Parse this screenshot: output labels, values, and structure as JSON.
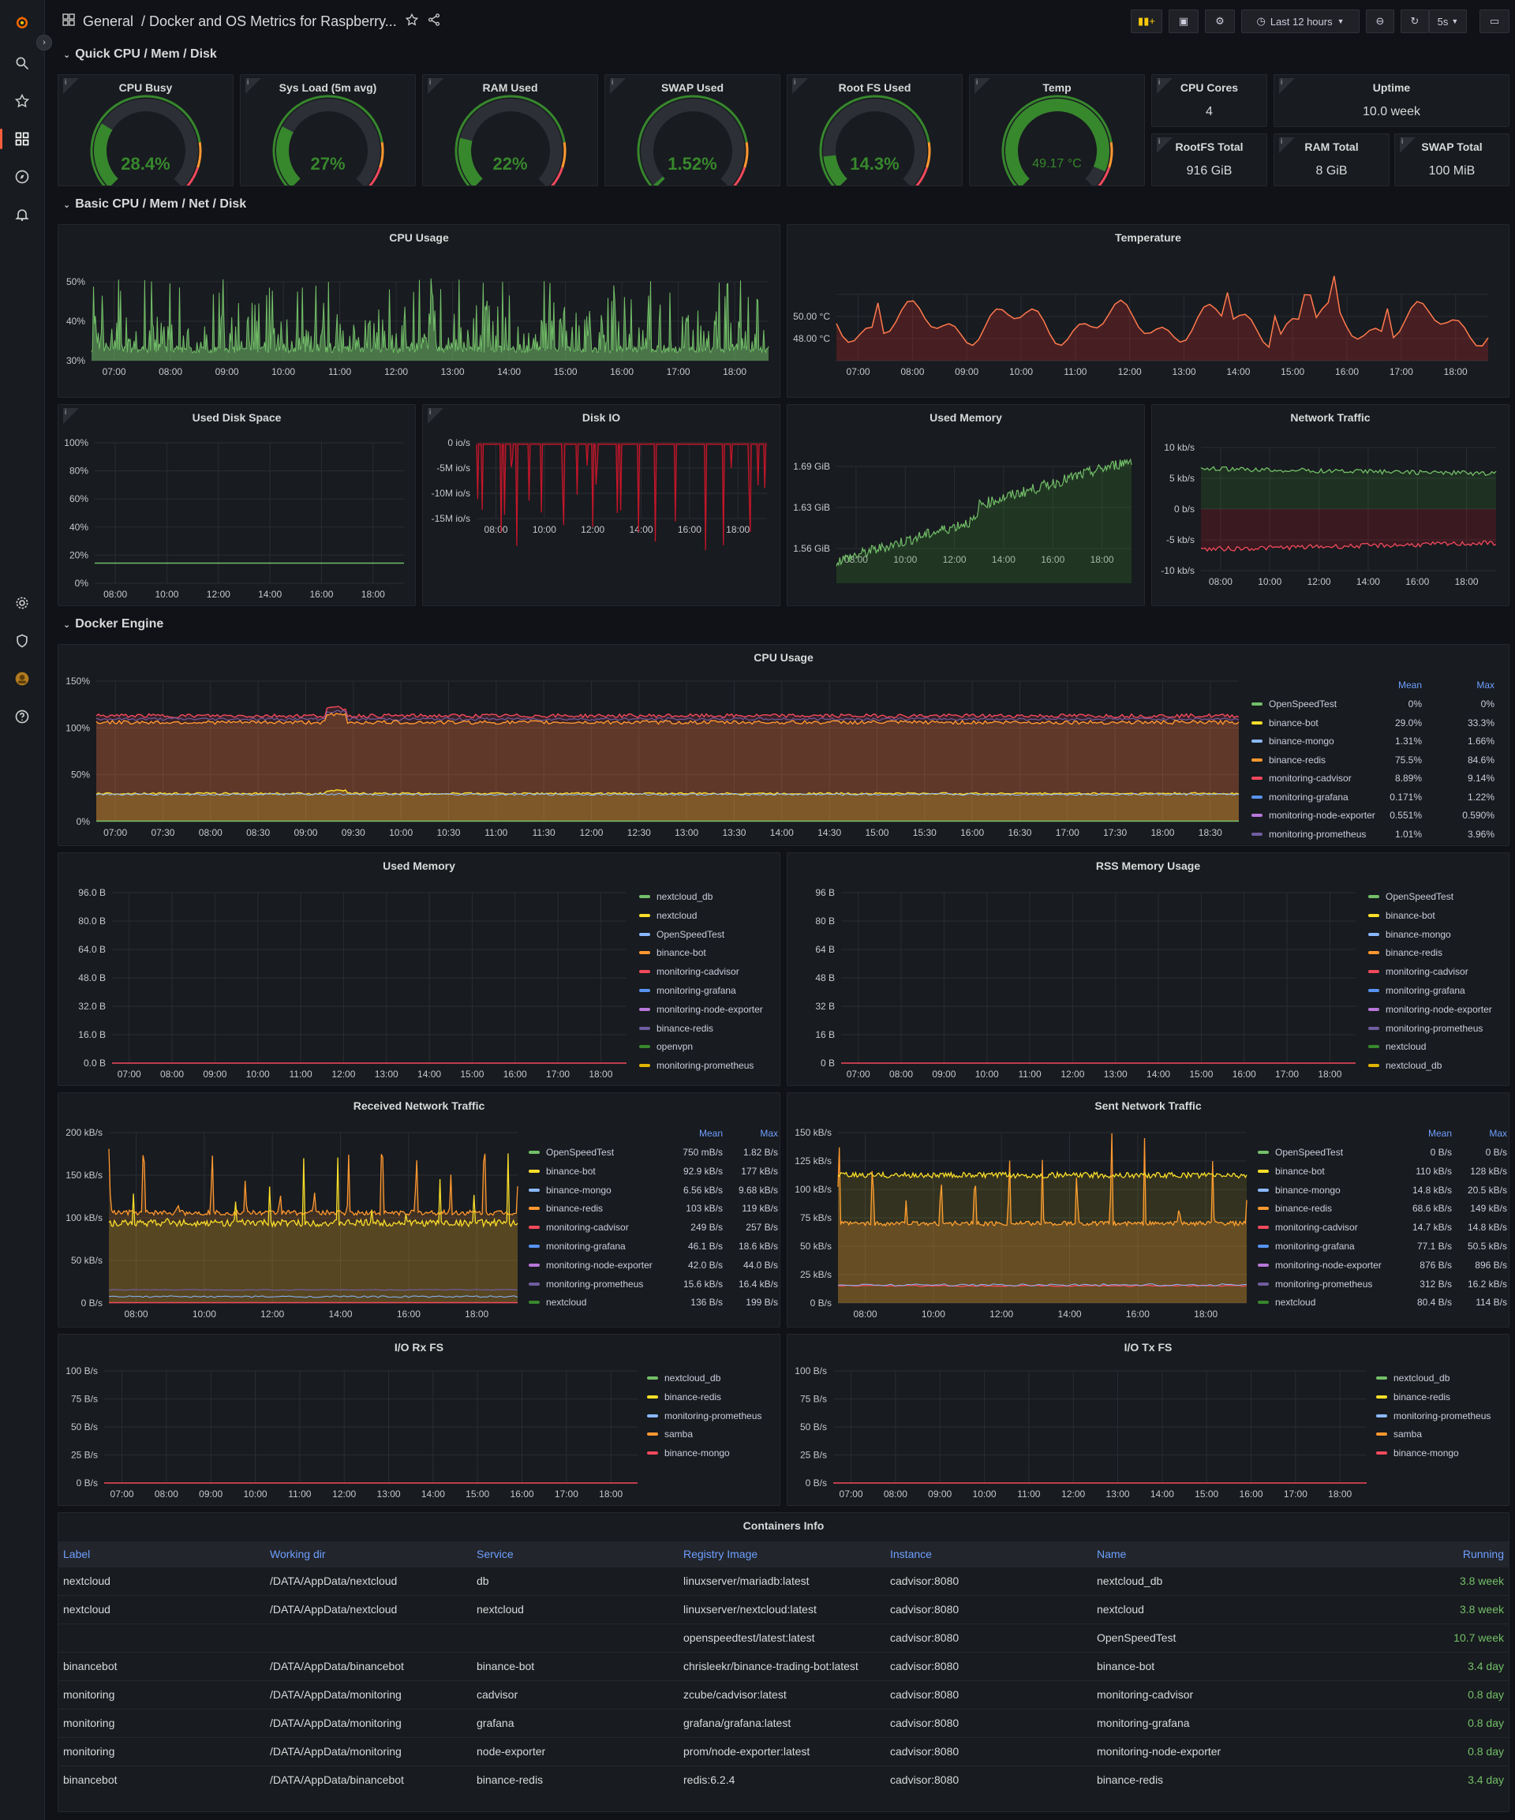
{
  "app": {
    "breadcrumb_folder": "General",
    "breadcrumb_title": "/ Docker and OS Metrics for Raspberry...",
    "time_range": "Last 12 hours",
    "refresh_interval": "5s",
    "accent": "#f55f3e"
  },
  "rows": {
    "quick": "Quick CPU / Mem / Disk",
    "basic": "Basic CPU / Mem / Net / Disk",
    "docker": "Docker Engine"
  },
  "gauges": [
    {
      "title": "CPU Busy",
      "value": "28.4%",
      "fraction": 0.284,
      "color": "#37872d"
    },
    {
      "title": "Sys Load (5m avg)",
      "value": "27%",
      "fraction": 0.27,
      "color": "#37872d"
    },
    {
      "title": "RAM Used",
      "value": "22%",
      "fraction": 0.22,
      "color": "#37872d"
    },
    {
      "title": "SWAP Used",
      "value": "1.52%",
      "fraction": 0.0152,
      "color": "#37872d"
    },
    {
      "title": "Root FS Used",
      "value": "14.3%",
      "fraction": 0.143,
      "color": "#37872d"
    },
    {
      "title": "Temp",
      "value": "49.17 °C",
      "fraction": 0.92,
      "color": "#37872d"
    }
  ],
  "stats": [
    {
      "title": "CPU Cores",
      "value": "4"
    },
    {
      "title": "Uptime",
      "value": "10.0 week"
    },
    {
      "title": "RootFS Total",
      "value": "916 GiB"
    },
    {
      "title": "RAM Total",
      "value": "8 GiB"
    },
    {
      "title": "SWAP Total",
      "value": "100 MiB"
    }
  ],
  "basic_panels": {
    "cpu_usage": {
      "title": "CPU Usage",
      "yticks": [
        "50%",
        "40%",
        "30%"
      ],
      "xticks": [
        "07:00",
        "08:00",
        "09:00",
        "10:00",
        "11:00",
        "12:00",
        "13:00",
        "14:00",
        "15:00",
        "16:00",
        "17:00",
        "18:00"
      ]
    },
    "temperature": {
      "title": "Temperature",
      "yticks": [
        "50.00 °C",
        "48.00 °C"
      ],
      "xticks": [
        "07:00",
        "08:00",
        "09:00",
        "10:00",
        "11:00",
        "12:00",
        "13:00",
        "14:00",
        "15:00",
        "16:00",
        "17:00",
        "18:00"
      ]
    },
    "used_disk": {
      "title": "Used Disk Space",
      "yticks": [
        "100%",
        "80%",
        "60%",
        "40%",
        "20%",
        "0%"
      ],
      "xticks": [
        "08:00",
        "10:00",
        "12:00",
        "14:00",
        "16:00",
        "18:00"
      ]
    },
    "disk_io": {
      "title": "Disk IO",
      "yticks": [
        "0 io/s",
        "-5M io/s",
        "-10M io/s",
        "-15M io/s"
      ],
      "xticks": [
        "08:00",
        "10:00",
        "12:00",
        "14:00",
        "16:00",
        "18:00"
      ]
    },
    "used_memory": {
      "title": "Used Memory",
      "yticks": [
        "1.69 GiB",
        "1.63 GiB",
        "1.56 GiB"
      ],
      "xticks": [
        "08:00",
        "10:00",
        "12:00",
        "14:00",
        "16:00",
        "18:00"
      ]
    },
    "network": {
      "title": "Network Traffic",
      "yticks": [
        "10 kb/s",
        "5 kb/s",
        "0 b/s",
        "-5 kb/s",
        "-10 kb/s"
      ],
      "xticks": [
        "08:00",
        "10:00",
        "12:00",
        "14:00",
        "16:00",
        "18:00"
      ]
    }
  },
  "docker_cpu": {
    "title": "CPU Usage",
    "yticks": [
      "150%",
      "100%",
      "50%",
      "0%"
    ],
    "xticks": [
      "07:00",
      "07:30",
      "08:00",
      "08:30",
      "09:00",
      "09:30",
      "10:00",
      "10:30",
      "11:00",
      "11:30",
      "12:00",
      "12:30",
      "13:00",
      "13:30",
      "14:00",
      "14:30",
      "15:00",
      "15:30",
      "16:00",
      "16:30",
      "17:00",
      "17:30",
      "18:00",
      "18:30"
    ],
    "legend_mean": "Mean",
    "legend_max": "Max",
    "legend": [
      {
        "name": "OpenSpeedTest",
        "mean": "0%",
        "max": "0%",
        "color": "#73bf69"
      },
      {
        "name": "binance-bot",
        "mean": "29.0%",
        "max": "33.3%",
        "color": "#fade2a"
      },
      {
        "name": "binance-mongo",
        "mean": "1.31%",
        "max": "1.66%",
        "color": "#8ab8ff"
      },
      {
        "name": "binance-redis",
        "mean": "75.5%",
        "max": "84.6%",
        "color": "#ff9830"
      },
      {
        "name": "monitoring-cadvisor",
        "mean": "8.89%",
        "max": "9.14%",
        "color": "#f2495c"
      },
      {
        "name": "monitoring-grafana",
        "mean": "0.171%",
        "max": "1.22%",
        "color": "#5794f2"
      },
      {
        "name": "monitoring-node-exporter",
        "mean": "0.551%",
        "max": "0.590%",
        "color": "#b877d9"
      },
      {
        "name": "monitoring-prometheus",
        "mean": "1.01%",
        "max": "3.96%",
        "color": "#705da0"
      }
    ]
  },
  "docker_mem": {
    "title": "Used Memory",
    "yticks": [
      "96.0 B",
      "80.0 B",
      "64.0 B",
      "48.0 B",
      "32.0 B",
      "16.0 B",
      "0.0 B"
    ],
    "xticks": [
      "07:00",
      "08:00",
      "09:00",
      "10:00",
      "11:00",
      "12:00",
      "13:00",
      "14:00",
      "15:00",
      "16:00",
      "17:00",
      "18:00"
    ],
    "legend": [
      {
        "name": "nextcloud_db",
        "color": "#73bf69"
      },
      {
        "name": "nextcloud",
        "color": "#fade2a"
      },
      {
        "name": "OpenSpeedTest",
        "color": "#8ab8ff"
      },
      {
        "name": "binance-bot",
        "color": "#ff9830"
      },
      {
        "name": "monitoring-cadvisor",
        "color": "#f2495c"
      },
      {
        "name": "monitoring-grafana",
        "color": "#5794f2"
      },
      {
        "name": "monitoring-node-exporter",
        "color": "#b877d9"
      },
      {
        "name": "binance-redis",
        "color": "#705da0"
      },
      {
        "name": "openvpn",
        "color": "#37872d"
      },
      {
        "name": "monitoring-prometheus",
        "color": "#e0b400"
      }
    ]
  },
  "docker_rss": {
    "title": "RSS Memory Usage",
    "yticks": [
      "96 B",
      "80 B",
      "64 B",
      "48 B",
      "32 B",
      "16 B",
      "0 B"
    ],
    "xticks": [
      "07:00",
      "08:00",
      "09:00",
      "10:00",
      "11:00",
      "12:00",
      "13:00",
      "14:00",
      "15:00",
      "16:00",
      "17:00",
      "18:00"
    ],
    "legend": [
      {
        "name": "OpenSpeedTest",
        "color": "#73bf69"
      },
      {
        "name": "binance-bot",
        "color": "#fade2a"
      },
      {
        "name": "binance-mongo",
        "color": "#8ab8ff"
      },
      {
        "name": "binance-redis",
        "color": "#ff9830"
      },
      {
        "name": "monitoring-cadvisor",
        "color": "#f2495c"
      },
      {
        "name": "monitoring-grafana",
        "color": "#5794f2"
      },
      {
        "name": "monitoring-node-exporter",
        "color": "#b877d9"
      },
      {
        "name": "monitoring-prometheus",
        "color": "#705da0"
      },
      {
        "name": "nextcloud",
        "color": "#37872d"
      },
      {
        "name": "nextcloud_db",
        "color": "#e0b400"
      }
    ]
  },
  "docker_rx": {
    "title": "Received Network Traffic",
    "yticks": [
      "200 kB/s",
      "150 kB/s",
      "100 kB/s",
      "50 kB/s",
      "0 B/s"
    ],
    "xticks": [
      "08:00",
      "10:00",
      "12:00",
      "14:00",
      "16:00",
      "18:00"
    ],
    "legend_mean": "Mean",
    "legend_max": "Max",
    "legend": [
      {
        "name": "OpenSpeedTest",
        "mean": "750 mB/s",
        "max": "1.82 B/s",
        "color": "#73bf69"
      },
      {
        "name": "binance-bot",
        "mean": "92.9 kB/s",
        "max": "177 kB/s",
        "color": "#fade2a"
      },
      {
        "name": "binance-mongo",
        "mean": "6.56 kB/s",
        "max": "9.68 kB/s",
        "color": "#8ab8ff"
      },
      {
        "name": "binance-redis",
        "mean": "103 kB/s",
        "max": "119 kB/s",
        "color": "#ff9830"
      },
      {
        "name": "monitoring-cadvisor",
        "mean": "249 B/s",
        "max": "257 B/s",
        "color": "#f2495c"
      },
      {
        "name": "monitoring-grafana",
        "mean": "46.1 B/s",
        "max": "18.6 kB/s",
        "color": "#5794f2"
      },
      {
        "name": "monitoring-node-exporter",
        "mean": "42.0 B/s",
        "max": "44.0 B/s",
        "color": "#b877d9"
      },
      {
        "name": "monitoring-prometheus",
        "mean": "15.6 kB/s",
        "max": "16.4 kB/s",
        "color": "#705da0"
      },
      {
        "name": "nextcloud",
        "mean": "136 B/s",
        "max": "199 B/s",
        "color": "#37872d"
      }
    ]
  },
  "docker_tx": {
    "title": "Sent Network Traffic",
    "yticks": [
      "150 kB/s",
      "125 kB/s",
      "100 kB/s",
      "75 kB/s",
      "50 kB/s",
      "25 kB/s",
      "0 B/s"
    ],
    "xticks": [
      "08:00",
      "10:00",
      "12:00",
      "14:00",
      "16:00",
      "18:00"
    ],
    "legend_mean": "Mean",
    "legend_max": "Max",
    "legend": [
      {
        "name": "OpenSpeedTest",
        "mean": "0 B/s",
        "max": "0 B/s",
        "color": "#73bf69"
      },
      {
        "name": "binance-bot",
        "mean": "110 kB/s",
        "max": "128 kB/s",
        "color": "#fade2a"
      },
      {
        "name": "binance-mongo",
        "mean": "14.8 kB/s",
        "max": "20.5 kB/s",
        "color": "#8ab8ff"
      },
      {
        "name": "binance-redis",
        "mean": "68.6 kB/s",
        "max": "149 kB/s",
        "color": "#ff9830"
      },
      {
        "name": "monitoring-cadvisor",
        "mean": "14.7 kB/s",
        "max": "14.8 kB/s",
        "color": "#f2495c"
      },
      {
        "name": "monitoring-grafana",
        "mean": "77.1 B/s",
        "max": "50.5 kB/s",
        "color": "#5794f2"
      },
      {
        "name": "monitoring-node-exporter",
        "mean": "876 B/s",
        "max": "896 B/s",
        "color": "#b877d9"
      },
      {
        "name": "monitoring-prometheus",
        "mean": "312 B/s",
        "max": "16.2 kB/s",
        "color": "#705da0"
      },
      {
        "name": "nextcloud",
        "mean": "80.4 B/s",
        "max": "114 B/s",
        "color": "#37872d"
      }
    ]
  },
  "docker_iorx": {
    "title": "I/O Rx FS",
    "yticks": [
      "100 B/s",
      "75 B/s",
      "50 B/s",
      "25 B/s",
      "0 B/s"
    ],
    "xticks": [
      "07:00",
      "08:00",
      "09:00",
      "10:00",
      "11:00",
      "12:00",
      "13:00",
      "14:00",
      "15:00",
      "16:00",
      "17:00",
      "18:00"
    ],
    "legend": [
      {
        "name": "nextcloud_db",
        "color": "#73bf69"
      },
      {
        "name": "binance-redis",
        "color": "#fade2a"
      },
      {
        "name": "monitoring-prometheus",
        "color": "#8ab8ff"
      },
      {
        "name": "samba",
        "color": "#ff9830"
      },
      {
        "name": "binance-mongo",
        "color": "#f2495c"
      }
    ]
  },
  "docker_iotx": {
    "title": "I/O Tx FS",
    "yticks": [
      "100 B/s",
      "75 B/s",
      "50 B/s",
      "25 B/s",
      "0 B/s"
    ],
    "xticks": [
      "07:00",
      "08:00",
      "09:00",
      "10:00",
      "11:00",
      "12:00",
      "13:00",
      "14:00",
      "15:00",
      "16:00",
      "17:00",
      "18:00"
    ],
    "legend": [
      {
        "name": "nextcloud_db",
        "color": "#73bf69"
      },
      {
        "name": "binance-redis",
        "color": "#fade2a"
      },
      {
        "name": "monitoring-prometheus",
        "color": "#8ab8ff"
      },
      {
        "name": "samba",
        "color": "#ff9830"
      },
      {
        "name": "binance-mongo",
        "color": "#f2495c"
      }
    ]
  },
  "containers": {
    "title": "Containers Info",
    "columns": [
      "Label",
      "Working dir",
      "Service",
      "Registry Image",
      "Instance",
      "Name",
      "Running"
    ],
    "rows": [
      [
        "nextcloud",
        "/DATA/AppData/nextcloud",
        "db",
        "linuxserver/mariadb:latest",
        "cadvisor:8080",
        "nextcloud_db",
        "3.8 week"
      ],
      [
        "nextcloud",
        "/DATA/AppData/nextcloud",
        "nextcloud",
        "linuxserver/nextcloud:latest",
        "cadvisor:8080",
        "nextcloud",
        "3.8 week"
      ],
      [
        "",
        "",
        "",
        "openspeedtest/latest:latest",
        "cadvisor:8080",
        "OpenSpeedTest",
        "10.7 week"
      ],
      [
        "binancebot",
        "/DATA/AppData/binancebot",
        "binance-bot",
        "chrisleekr/binance-trading-bot:latest",
        "cadvisor:8080",
        "binance-bot",
        "3.4 day"
      ],
      [
        "monitoring",
        "/DATA/AppData/monitoring",
        "cadvisor",
        "zcube/cadvisor:latest",
        "cadvisor:8080",
        "monitoring-cadvisor",
        "0.8 day"
      ],
      [
        "monitoring",
        "/DATA/AppData/monitoring",
        "grafana",
        "grafana/grafana:latest",
        "cadvisor:8080",
        "monitoring-grafana",
        "0.8 day"
      ],
      [
        "monitoring",
        "/DATA/AppData/monitoring",
        "node-exporter",
        "prom/node-exporter:latest",
        "cadvisor:8080",
        "monitoring-node-exporter",
        "0.8 day"
      ],
      [
        "binancebot",
        "/DATA/AppData/binancebot",
        "binance-redis",
        "redis:6.2.4",
        "cadvisor:8080",
        "binance-redis",
        "3.4 day"
      ]
    ]
  }
}
